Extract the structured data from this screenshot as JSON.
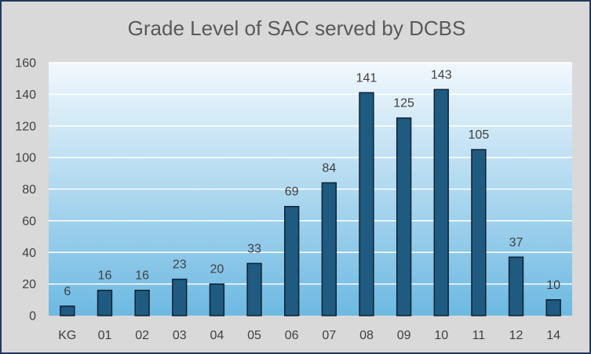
{
  "chart_data": {
    "type": "bar",
    "title": "Grade Level of SAC served by DCBS",
    "xlabel": "",
    "ylabel": "",
    "categories": [
      "KG",
      "01",
      "02",
      "03",
      "04",
      "05",
      "06",
      "07",
      "08",
      "09",
      "10",
      "11",
      "12",
      "14"
    ],
    "values": [
      6,
      16,
      16,
      23,
      20,
      33,
      69,
      84,
      141,
      125,
      143,
      105,
      37,
      10
    ],
    "ylim": [
      0,
      160
    ],
    "yticks": [
      0,
      20,
      40,
      60,
      80,
      100,
      120,
      140,
      160
    ],
    "grid": true,
    "legend": "none",
    "data_labels": true,
    "colors": {
      "bar_fill": "#1f5b80",
      "bar_stroke": "#0f2233",
      "grid": "#ffffff",
      "plot_top": "#f2f8fd",
      "plot_bottom": "#6db9e2",
      "frame_bg": "#d9d9d9",
      "frame_border": "#23395d"
    }
  }
}
